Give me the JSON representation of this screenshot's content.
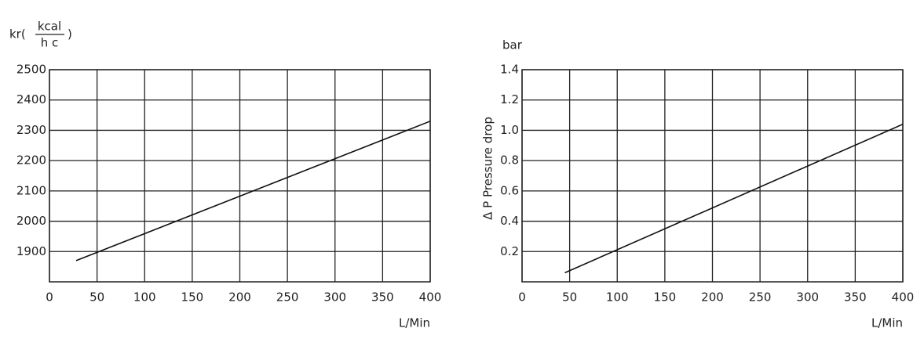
{
  "chart_data": [
    {
      "type": "line",
      "y_label_parts": [
        "kr(",
        "kcal",
        "h c",
        ")"
      ],
      "x_label": "L/Min",
      "x": [
        28,
        400
      ],
      "series": [
        {
          "color": "#111111",
          "values": [
            1870,
            2330
          ]
        }
      ],
      "xlim": [
        0,
        400
      ],
      "xticks": [
        0,
        50,
        100,
        150,
        200,
        250,
        300,
        350,
        400
      ],
      "ylim": [
        1800,
        2500
      ],
      "yticks": [
        1900,
        2000,
        2100,
        2200,
        2300,
        2400,
        2500
      ],
      "grid": true
    },
    {
      "type": "line",
      "y_unit": "bar",
      "y_label": "Δ P  Pressure drop",
      "x_label": "L/Min",
      "x": [
        45,
        400
      ],
      "series": [
        {
          "color": "#111111",
          "values": [
            0.06,
            1.04
          ]
        }
      ],
      "xlim": [
        0,
        400
      ],
      "xticks": [
        0,
        50,
        100,
        150,
        200,
        250,
        300,
        350,
        400
      ],
      "ylim": [
        0,
        1.4
      ],
      "yticks": [
        0.2,
        0.4,
        0.6,
        0.8,
        {
          "value": 1,
          "label": "1.0"
        },
        1.2,
        1.4
      ],
      "grid": true
    }
  ]
}
